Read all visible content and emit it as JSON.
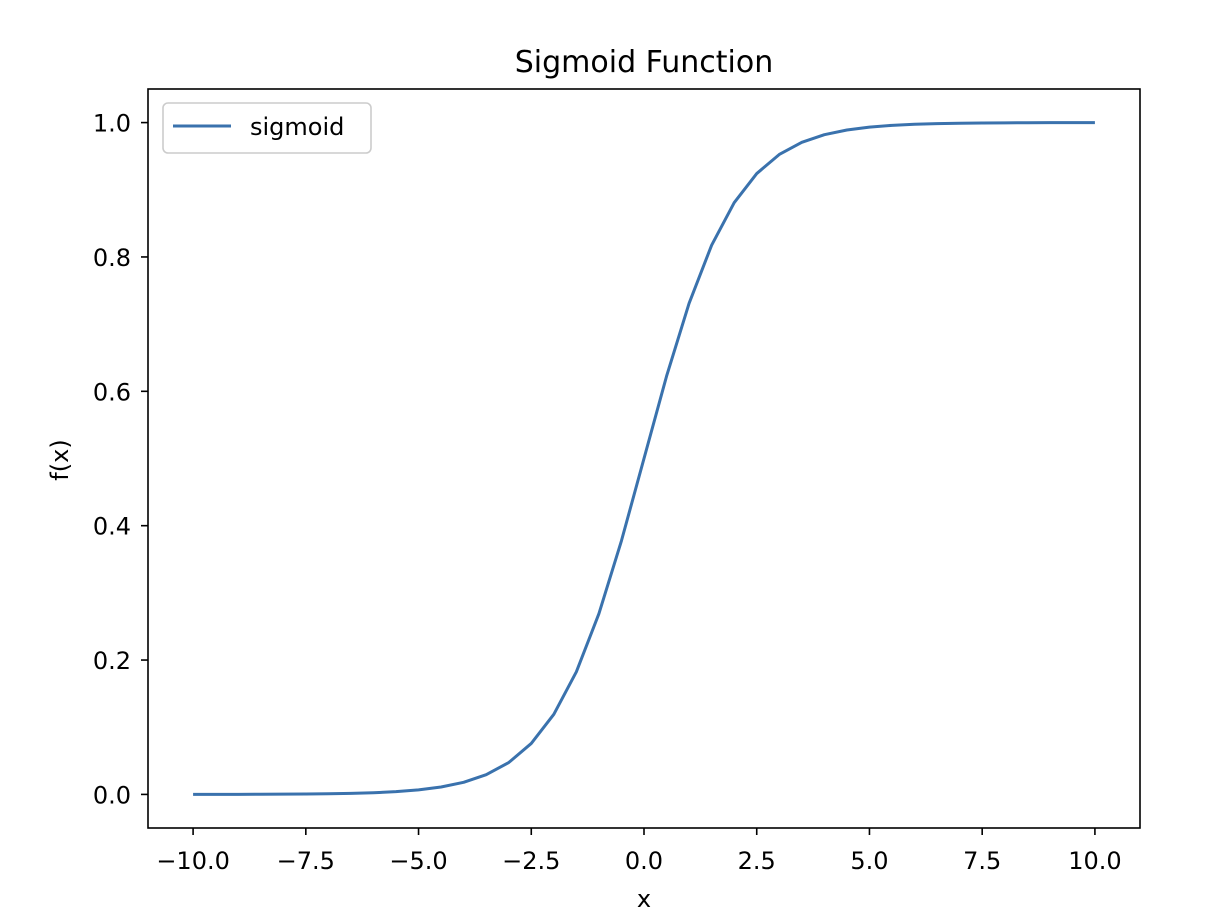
{
  "chart_data": {
    "type": "line",
    "title": "Sigmoid Function",
    "xlabel": "x",
    "ylabel": "f(x)",
    "xlim": [
      -11.0,
      11.0
    ],
    "ylim": [
      -0.05,
      1.05
    ],
    "x_ticks": [
      -10.0,
      -7.5,
      -5.0,
      -2.5,
      0.0,
      2.5,
      5.0,
      7.5,
      10.0
    ],
    "x_tick_labels": [
      "−10.0",
      "−7.5",
      "−5.0",
      "−2.5",
      "0.0",
      "2.5",
      "5.0",
      "7.5",
      "10.0"
    ],
    "y_ticks": [
      0.0,
      0.2,
      0.4,
      0.6,
      0.8,
      1.0
    ],
    "y_tick_labels": [
      "0.0",
      "0.2",
      "0.4",
      "0.6",
      "0.8",
      "1.0"
    ],
    "grid": false,
    "legend": {
      "placement": "top-left"
    },
    "series": [
      {
        "name": "sigmoid",
        "color": "#3a72ad",
        "x": [
          -10.0,
          -9.5,
          -9.0,
          -8.5,
          -8.0,
          -7.5,
          -7.0,
          -6.5,
          -6.0,
          -5.5,
          -5.0,
          -4.5,
          -4.0,
          -3.5,
          -3.0,
          -2.5,
          -2.0,
          -1.5,
          -1.0,
          -0.5,
          0.0,
          0.5,
          1.0,
          1.5,
          2.0,
          2.5,
          3.0,
          3.5,
          4.0,
          4.5,
          5.0,
          5.5,
          6.0,
          6.5,
          7.0,
          7.5,
          8.0,
          8.5,
          9.0,
          9.5,
          10.0
        ],
        "y": [
          5e-05,
          7e-05,
          0.00012,
          0.0002,
          0.00034,
          0.00055,
          0.00091,
          0.0015,
          0.00247,
          0.00407,
          0.00669,
          0.01099,
          0.01799,
          0.02931,
          0.04743,
          0.07586,
          0.1192,
          0.18243,
          0.26894,
          0.37754,
          0.5,
          0.62246,
          0.73106,
          0.81757,
          0.8808,
          0.92414,
          0.95257,
          0.97069,
          0.98201,
          0.98901,
          0.99331,
          0.99593,
          0.99753,
          0.9985,
          0.99909,
          0.99945,
          0.99966,
          0.9998,
          0.99988,
          0.99993,
          0.99995
        ]
      }
    ]
  }
}
